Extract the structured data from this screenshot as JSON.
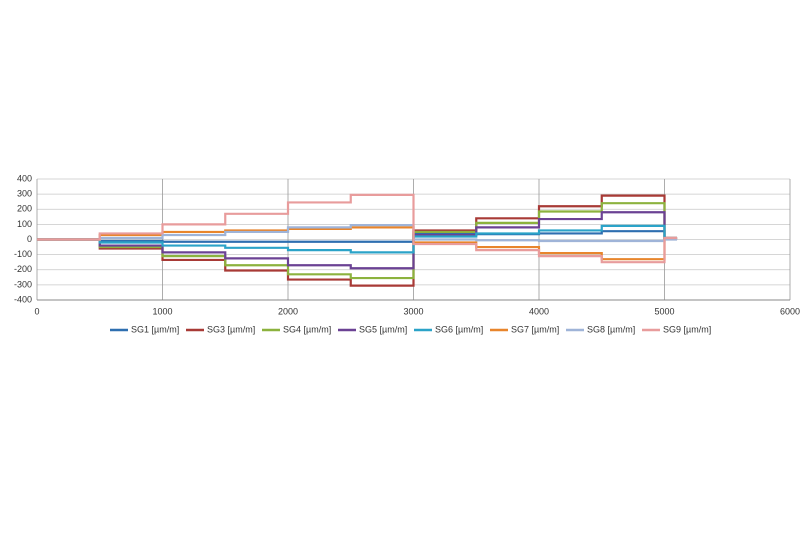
{
  "chart_data": {
    "type": "line",
    "x": [
      0,
      500,
      500,
      1000,
      1000,
      1500,
      1500,
      2000,
      2000,
      2500,
      2500,
      3000,
      3000,
      3500,
      3500,
      4000,
      4000,
      4500,
      4500,
      5000,
      5000,
      5100
    ],
    "series": [
      {
        "name": "SG1 [µm/m]",
        "color": "#2e6fb0",
        "values": [
          0,
          0,
          -10,
          -10,
          -15,
          -15,
          -15,
          -15,
          -15,
          -15,
          -15,
          -15,
          40,
          40,
          35,
          35,
          40,
          40,
          55,
          55,
          5,
          5
        ]
      },
      {
        "name": "SG3 [µm/m]",
        "color": "#a83a36",
        "values": [
          0,
          0,
          -60,
          -60,
          -135,
          -135,
          -205,
          -205,
          -265,
          -265,
          -305,
          -305,
          60,
          60,
          140,
          140,
          220,
          220,
          290,
          290,
          10,
          10
        ]
      },
      {
        "name": "SG4 [µm/m]",
        "color": "#8cb23e",
        "values": [
          0,
          0,
          -50,
          -50,
          -110,
          -110,
          -170,
          -170,
          -230,
          -230,
          -255,
          -255,
          50,
          50,
          110,
          110,
          185,
          185,
          240,
          240,
          10,
          10
        ]
      },
      {
        "name": "SG5 [µm/m]",
        "color": "#6b4294",
        "values": [
          0,
          0,
          -40,
          -40,
          -85,
          -85,
          -125,
          -125,
          -170,
          -170,
          -190,
          -190,
          30,
          30,
          80,
          80,
          135,
          135,
          180,
          180,
          10,
          10
        ]
      },
      {
        "name": "SG6 [µm/m]",
        "color": "#2ba3c8",
        "values": [
          0,
          0,
          -20,
          -20,
          -40,
          -40,
          -55,
          -55,
          -70,
          -70,
          -85,
          -85,
          20,
          20,
          40,
          40,
          60,
          60,
          90,
          90,
          5,
          5
        ]
      },
      {
        "name": "SG7 [µm/m]",
        "color": "#e8852c",
        "values": [
          0,
          0,
          30,
          30,
          50,
          50,
          60,
          60,
          70,
          70,
          80,
          80,
          -20,
          -20,
          -50,
          -50,
          -90,
          -90,
          -130,
          -130,
          5,
          5
        ]
      },
      {
        "name": "SG8 [µm/m]",
        "color": "#9fb4d8",
        "values": [
          0,
          0,
          10,
          10,
          30,
          30,
          50,
          50,
          80,
          80,
          95,
          95,
          0,
          0,
          -5,
          -5,
          -10,
          -10,
          -10,
          -10,
          0,
          0
        ]
      },
      {
        "name": "SG9 [µm/m]",
        "color": "#e89c9c",
        "values": [
          0,
          0,
          40,
          40,
          100,
          100,
          170,
          170,
          245,
          245,
          295,
          295,
          -30,
          -30,
          -70,
          -70,
          -110,
          -110,
          -150,
          -150,
          10,
          10
        ]
      }
    ],
    "xlim": [
      0,
      6000
    ],
    "xticks": [
      0,
      1000,
      2000,
      3000,
      4000,
      5000,
      6000
    ],
    "ylim": [
      -400,
      400
    ],
    "yticks": [
      -400,
      -300,
      -200,
      -100,
      0,
      100,
      200,
      300,
      400
    ],
    "grid": true,
    "legend": "bottom"
  }
}
